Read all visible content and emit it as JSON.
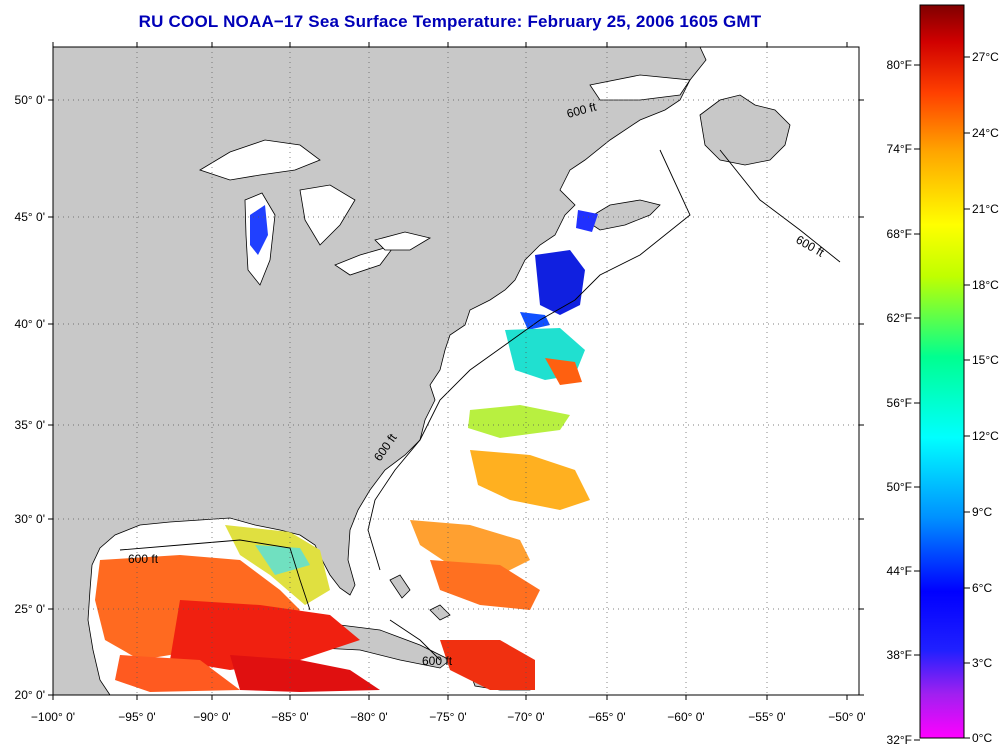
{
  "title": "RU COOL  NOAA−17  Sea Surface Temperature:  February 25, 2006 1605 GMT",
  "map": {
    "lat_labels": [
      "50° 0'",
      "45° 0'",
      "40° 0'",
      "35° 0'",
      "30° 0'",
      "25° 0'",
      "20° 0'"
    ],
    "lon_labels": [
      "−100° 0'",
      "−95° 0'",
      "−90° 0'",
      "−85° 0'",
      "−80° 0'",
      "−75° 0'",
      "−70° 0'",
      "−65° 0'",
      "−60° 0'",
      "−55° 0'",
      "−50° 0'"
    ],
    "isobath_label": "600 ft",
    "land_color": "#c8c8c8",
    "ocean_color": "#ffffff",
    "grid": "dotted"
  },
  "colorbar": {
    "fahrenheit_labels": [
      "80°F",
      "74°F",
      "68°F",
      "62°F",
      "56°F",
      "50°F",
      "44°F",
      "38°F",
      "32°F"
    ],
    "celsius_labels": [
      "27°C",
      "24°C",
      "21°C",
      "18°C",
      "15°C",
      "12°C",
      "9°C",
      "6°C",
      "3°C",
      "0°C"
    ],
    "range_c": [
      0,
      29
    ],
    "colors": [
      "#ff00ff",
      "#8a2be2",
      "#0000ff",
      "#00a0ff",
      "#00ffff",
      "#00ff80",
      "#ffff00",
      "#ffa500",
      "#ff3000",
      "#cc0000",
      "#800000"
    ]
  }
}
